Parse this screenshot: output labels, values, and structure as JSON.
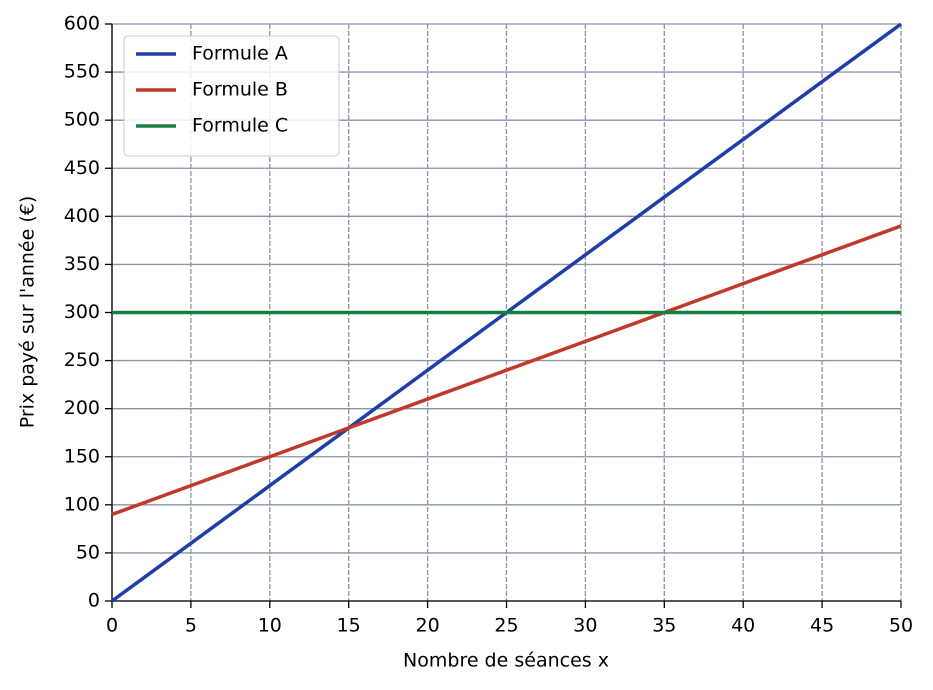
{
  "chart_data": {
    "type": "line",
    "x_label": "Nombre de séances x",
    "y_label": "Prix payé sur l'année (€)",
    "x": [
      0,
      5,
      10,
      15,
      20,
      25,
      30,
      35,
      40,
      45,
      50
    ],
    "series": [
      {
        "name": "Formule A",
        "color": "#1f3fa8",
        "values": [
          0,
          60,
          120,
          180,
          240,
          300,
          360,
          420,
          480,
          540,
          600
        ]
      },
      {
        "name": "Formule B",
        "color": "#c0392b",
        "values": [
          90,
          120,
          150,
          180,
          210,
          240,
          270,
          300,
          330,
          360,
          390
        ]
      },
      {
        "name": "Formule C",
        "color": "#15803d",
        "values": [
          300,
          300,
          300,
          300,
          300,
          300,
          300,
          300,
          300,
          300,
          300
        ]
      }
    ],
    "xlim": [
      0,
      50
    ],
    "xticks": [
      0,
      5,
      10,
      15,
      20,
      25,
      30,
      35,
      40,
      45,
      50
    ],
    "ylim": [
      0,
      600
    ],
    "yticks": [
      0,
      50,
      100,
      150,
      200,
      250,
      300,
      350,
      400,
      450,
      500,
      550,
      600
    ],
    "grid": true,
    "legend": "upper-left"
  }
}
